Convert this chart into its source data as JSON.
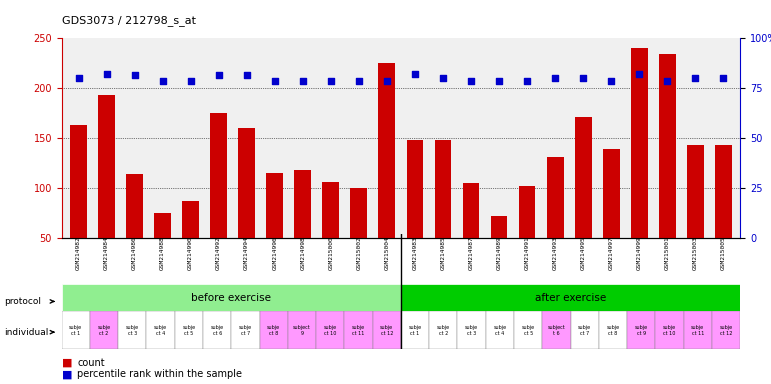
{
  "title": "GDS3073 / 212798_s_at",
  "samples": [
    "GSM214982",
    "GSM214984",
    "GSM214986",
    "GSM214988",
    "GSM214990",
    "GSM214992",
    "GSM214994",
    "GSM214996",
    "GSM214998",
    "GSM215000",
    "GSM215002",
    "GSM215004",
    "GSM214983",
    "GSM214985",
    "GSM214987",
    "GSM214989",
    "GSM214991",
    "GSM214993",
    "GSM214995",
    "GSM214997",
    "GSM214999",
    "GSM215001",
    "GSM215003",
    "GSM215005"
  ],
  "bar_values": [
    163,
    193,
    114,
    75,
    87,
    175,
    160,
    115,
    118,
    106,
    100,
    225,
    148,
    148,
    105,
    72,
    102,
    131,
    171,
    139,
    240,
    234,
    143,
    143
  ],
  "dot_values": [
    210,
    214,
    213,
    207,
    207,
    213,
    213,
    207,
    207,
    207,
    207,
    207,
    214,
    210,
    207,
    207,
    207,
    210,
    210,
    207,
    214,
    207,
    210,
    210
  ],
  "bar_color": "#cc0000",
  "dot_color": "#0000cc",
  "ylim_left": [
    50,
    250
  ],
  "ylim_right": [
    0,
    100
  ],
  "yticks_left": [
    50,
    100,
    150,
    200,
    250
  ],
  "yticks_right": [
    0,
    25,
    50,
    75,
    100
  ],
  "ytick_labels_right": [
    "0",
    "25",
    "50",
    "75",
    "100%"
  ],
  "grid_lines": [
    100,
    150,
    200
  ],
  "protocol_before": "before exercise",
  "protocol_after": "after exercise",
  "protocol_color_before": "#90ee90",
  "protocol_color_after": "#00cc00",
  "individual_labels_before": [
    "subje\nct 1",
    "subje\nct 2",
    "subje\nct 3",
    "subje\nct 4",
    "subje\nct 5",
    "subje\nct 6",
    "subje\nct 7",
    "subje\nct 8",
    "subject\n9",
    "subje\nct 10",
    "subje\nct 11",
    "subje\nct 12"
  ],
  "individual_labels_after": [
    "subje\nct 1",
    "subje\nct 2",
    "subje\nct 3",
    "subje\nct 4",
    "subje\nct 5",
    "subject\nt 6",
    "subje\nct 7",
    "subje\nct 8",
    "subje\nct 9",
    "subje\nct 10",
    "subje\nct 11",
    "subje\nct 12"
  ],
  "individual_colors_before": [
    "#ffffff",
    "#ff99ff",
    "#ffffff",
    "#ffffff",
    "#ffffff",
    "#ffffff",
    "#ffffff",
    "#ff99ff",
    "#ff99ff",
    "#ff99ff",
    "#ff99ff",
    "#ff99ff"
  ],
  "individual_colors_after": [
    "#ffffff",
    "#ffffff",
    "#ffffff",
    "#ffffff",
    "#ffffff",
    "#ff99ff",
    "#ffffff",
    "#ffffff",
    "#ff99ff",
    "#ff99ff",
    "#ff99ff",
    "#ff99ff"
  ],
  "legend_count_color": "#cc0000",
  "legend_dot_color": "#0000cc",
  "legend_count_label": "count",
  "legend_dot_label": "percentile rank within the sample"
}
